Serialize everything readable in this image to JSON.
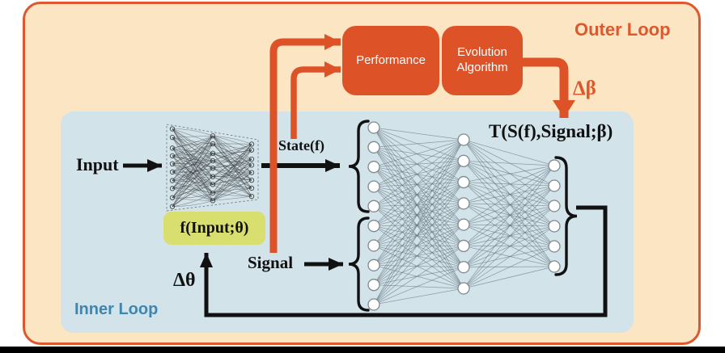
{
  "colors": {
    "outer_bg": "#FBE5C3",
    "outer_border": "#DF572C",
    "box_orange": "#DD5327",
    "inner_bg": "#D2E3EA",
    "inner_label": "#3E86B2",
    "lime_bg": "#D9DF6E",
    "arrow_orange": "#DD5327",
    "arrow_black": "#111111",
    "net_edge": "#5F6D75",
    "net_node_fill": "#FFFFFF",
    "net_node_stroke": "#7D8A91",
    "sketch_ink": "#333333"
  },
  "outer_loop": {
    "label": "Outer Loop"
  },
  "inner_loop": {
    "label": "Inner Loop"
  },
  "boxes": {
    "performance": "Performance",
    "evolution": "Evolution\nAlgorithm"
  },
  "labels": {
    "input": "Input",
    "state": "State(f)",
    "signal": "Signal",
    "transform": "T(S(f),Signal;β)",
    "f_box": "f(Input;θ)",
    "delta_theta": "Δθ",
    "delta_beta": "Δβ"
  },
  "icons": {
    "state_brace": "left-curly-brace-icon",
    "signal_brace": "left-curly-brace-icon",
    "output_brace": "right-curly-brace-icon"
  },
  "main_network": {
    "layer_sizes": [
      10,
      8,
      6
    ],
    "state_group_size": 5,
    "signal_group_size": 5
  },
  "sketch_network": {
    "layer_sizes": [
      10,
      9,
      8
    ]
  }
}
